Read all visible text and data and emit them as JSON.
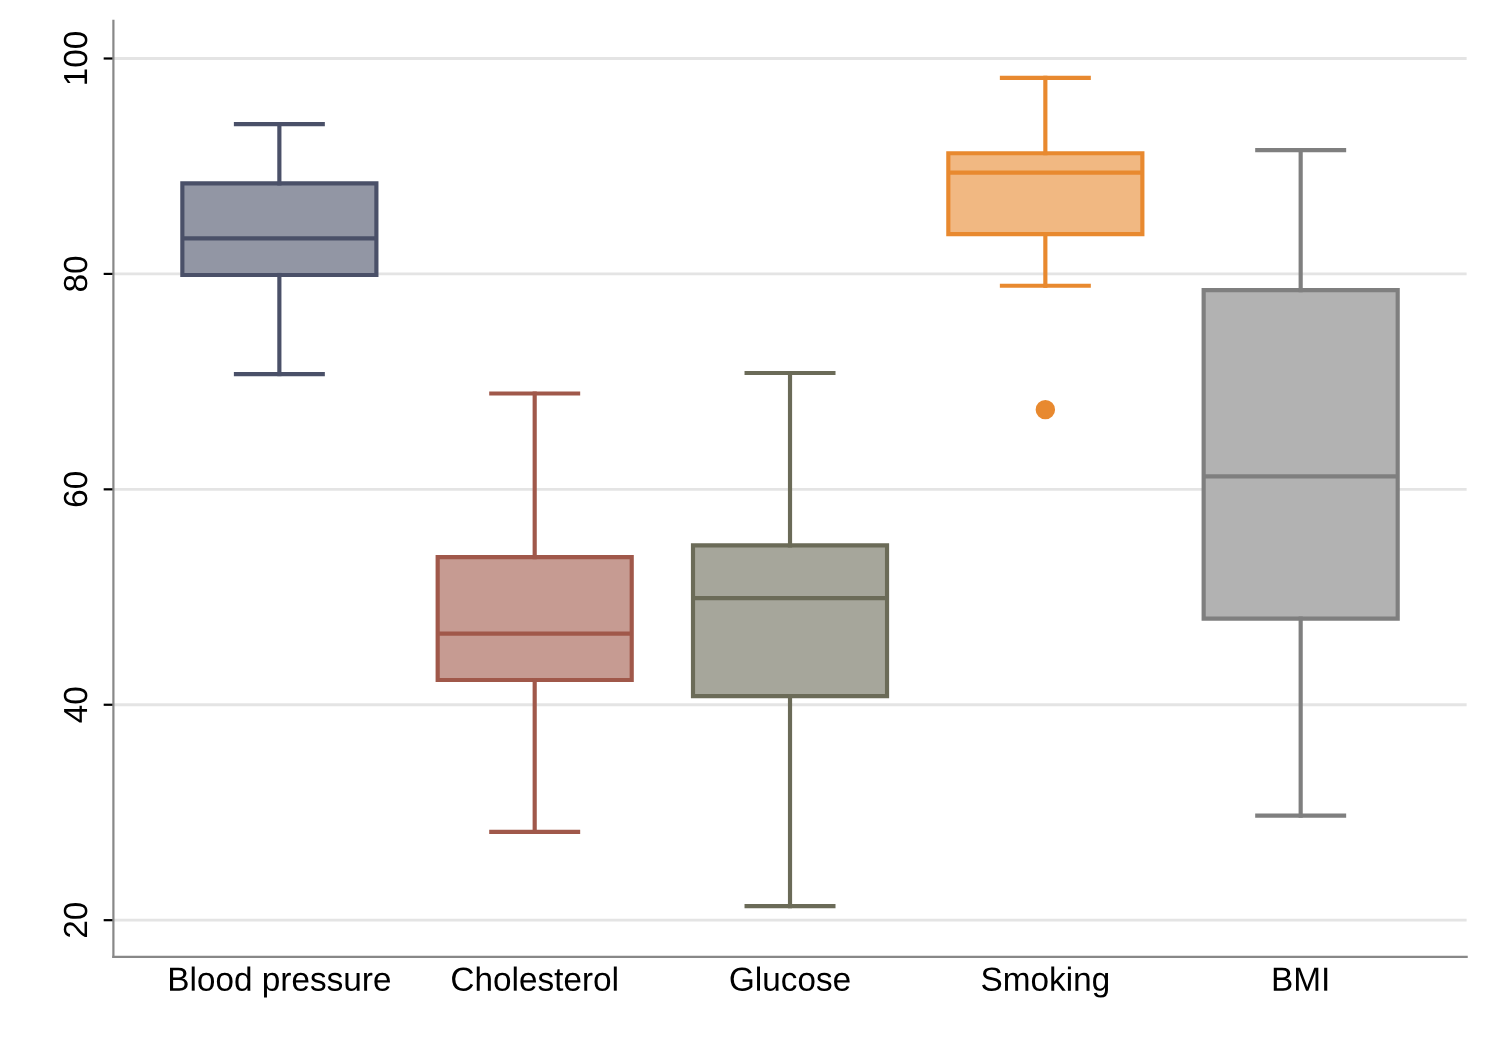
{
  "chart_data": {
    "type": "box",
    "categories": [
      "Blood pressure",
      "Cholesterol",
      "Glucose",
      "Smoking",
      "BMI"
    ],
    "boxes": [
      {
        "low": 70.7,
        "q1": 79.9,
        "median": 83.3,
        "q3": 88.4,
        "high": 93.9
      },
      {
        "low": 28.2,
        "q1": 42.3,
        "median": 46.6,
        "q3": 53.7,
        "high": 68.9
      },
      {
        "low": 21.3,
        "q1": 40.8,
        "median": 49.9,
        "q3": 54.8,
        "high": 70.8
      },
      {
        "low": 78.9,
        "q1": 83.7,
        "median": 89.4,
        "q3": 91.2,
        "high": 98.2,
        "outliers": [
          67.4
        ]
      },
      {
        "low": 29.7,
        "q1": 48.0,
        "median": 61.2,
        "q3": 78.5,
        "high": 91.5
      }
    ],
    "colors": [
      "#4a5068",
      "#a0584a",
      "#6b6b58",
      "#e8892f",
      "#7f7f7f"
    ],
    "ylim": [
      16.6,
      103.5
    ],
    "yticks": [
      20,
      40,
      60,
      80,
      100
    ],
    "grid": "y"
  }
}
